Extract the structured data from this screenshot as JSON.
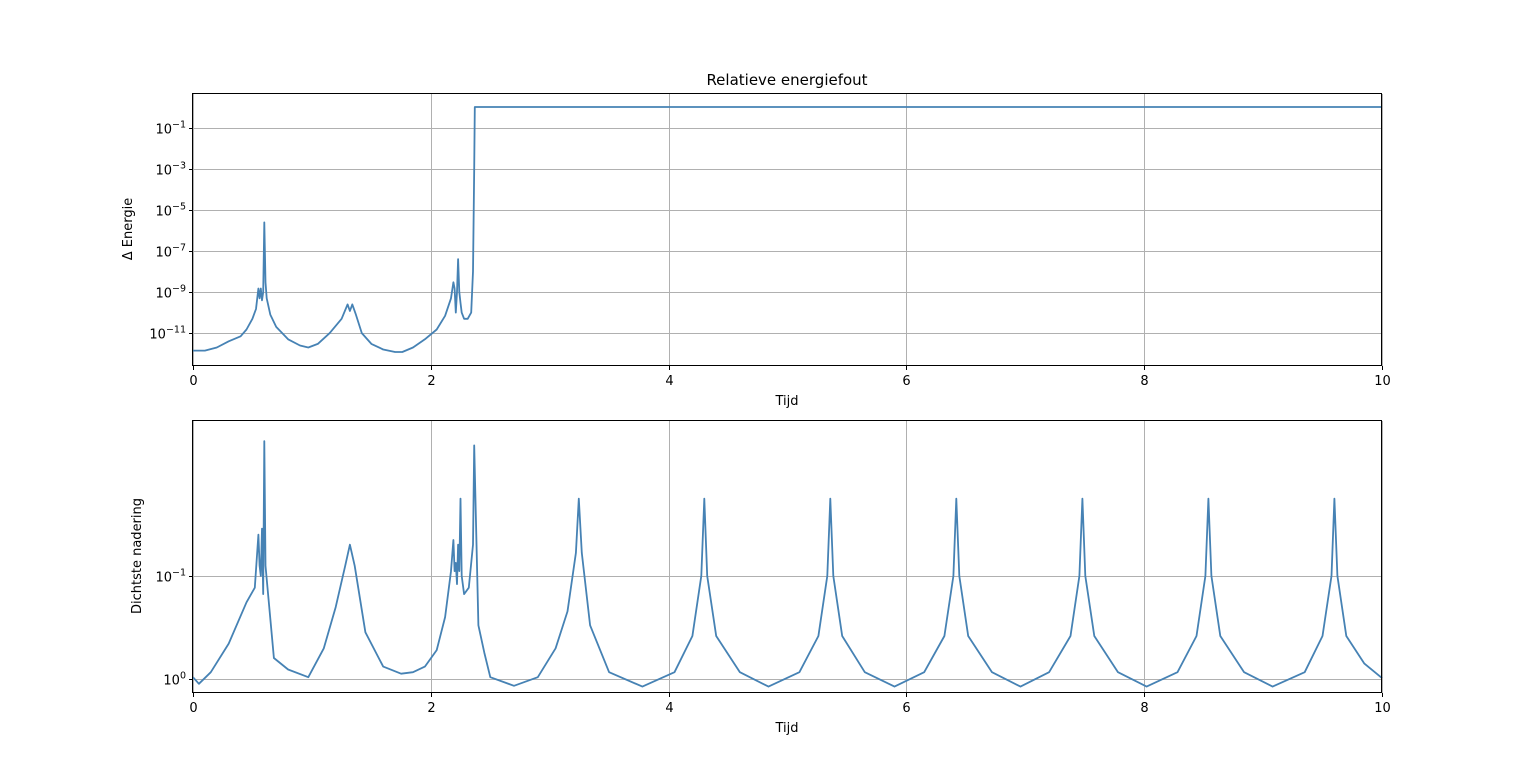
{
  "chart_data": [
    {
      "type": "line",
      "title": "Relatieve energiefout",
      "xlabel": "Tijd",
      "ylabel": "Δ Energie",
      "yscale": "log",
      "xlim": [
        0,
        10
      ],
      "ylim": [
        2.5e-13,
        4.5
      ],
      "grid": true,
      "color": "#4682b4",
      "xticks": [
        {
          "value": 0,
          "label": "0"
        },
        {
          "value": 2,
          "label": "2"
        },
        {
          "value": 4,
          "label": "4"
        },
        {
          "value": 6,
          "label": "6"
        },
        {
          "value": 8,
          "label": "8"
        },
        {
          "value": 10,
          "label": "10"
        }
      ],
      "yticks": [
        {
          "value": 1e-11,
          "base": "10",
          "exp": "−11"
        },
        {
          "value": 1e-09,
          "base": "10",
          "exp": "−9"
        },
        {
          "value": 1e-07,
          "base": "10",
          "exp": "−7"
        },
        {
          "value": 1e-05,
          "base": "10",
          "exp": "−5"
        },
        {
          "value": 0.001,
          "base": "10",
          "exp": "−3"
        },
        {
          "value": 0.1,
          "base": "10",
          "exp": "−1"
        }
      ],
      "series": [
        {
          "x": [
            0,
            0.1,
            0.2,
            0.3,
            0.4,
            0.45,
            0.5,
            0.53,
            0.55,
            0.56,
            0.57,
            0.58,
            0.59,
            0.6,
            0.61,
            0.62,
            0.65,
            0.7,
            0.8,
            0.9,
            0.97,
            1.05,
            1.15,
            1.25,
            1.3,
            1.32,
            1.34,
            1.37,
            1.42,
            1.5,
            1.6,
            1.7,
            1.76,
            1.85,
            1.95,
            2.05,
            2.12,
            2.17,
            2.19,
            2.2,
            2.21,
            2.22,
            2.23,
            2.24,
            2.25,
            2.26,
            2.28,
            2.31,
            2.34,
            2.355,
            2.365,
            2.37,
            4,
            6,
            8,
            10
          ],
          "y": [
            1.4e-12,
            1.4e-12,
            2e-12,
            4e-12,
            7e-12,
            1.5e-11,
            5e-11,
            1.5e-10,
            1.5e-09,
            5e-10,
            1.5e-09,
            4e-10,
            1e-09,
            2.5e-06,
            3e-09,
            5e-10,
            8e-11,
            2e-11,
            5e-12,
            2.5e-12,
            2e-12,
            3e-12,
            1e-11,
            5e-11,
            2.5e-10,
            1.2e-10,
            2.5e-10,
            8e-11,
            1e-11,
            3e-12,
            1.6e-12,
            1.2e-12,
            1.2e-12,
            2e-12,
            5e-12,
            1.5e-11,
            7e-11,
            5e-10,
            3e-09,
            1.5e-09,
            1e-10,
            1e-09,
            4e-08,
            1e-09,
            3e-10,
            1e-10,
            5e-11,
            5e-11,
            1e-10,
            1e-08,
            0.001,
            1.05,
            1.05,
            1.05,
            1.05,
            1.05
          ]
        }
      ]
    },
    {
      "type": "line",
      "title": "",
      "xlabel": "Tijd",
      "ylabel": "Dichtste nadering",
      "yscale": "log",
      "yinverted": true,
      "xlim": [
        0,
        10
      ],
      "ylim": [
        1.35,
        0.0032
      ],
      "grid": true,
      "color": "#4682b4",
      "xticks": [
        {
          "value": 0,
          "label": "0"
        },
        {
          "value": 2,
          "label": "2"
        },
        {
          "value": 4,
          "label": "4"
        },
        {
          "value": 6,
          "label": "6"
        },
        {
          "value": 8,
          "label": "8"
        },
        {
          "value": 10,
          "label": "10"
        }
      ],
      "yticks": [
        {
          "value": 1,
          "base": "10",
          "exp": "0"
        },
        {
          "value": 0.1,
          "base": "10",
          "exp": "−1"
        }
      ],
      "series": [
        {
          "x": [
            0,
            0.05,
            0.15,
            0.3,
            0.45,
            0.52,
            0.55,
            0.56,
            0.57,
            0.58,
            0.59,
            0.6,
            0.61,
            0.68,
            0.8,
            0.97,
            1.1,
            1.2,
            1.28,
            1.32,
            1.36,
            1.45,
            1.6,
            1.75,
            1.85,
            1.95,
            2.05,
            2.12,
            2.17,
            2.19,
            2.2,
            2.21,
            2.22,
            2.23,
            2.24,
            2.25,
            2.26,
            2.28,
            2.32,
            2.355,
            2.365,
            2.4,
            2.45,
            2.5,
            2.7,
            2.9,
            3.05,
            3.15,
            3.22,
            3.245,
            3.27,
            3.34,
            3.5,
            3.78,
            4.05,
            4.2,
            4.275,
            4.3,
            4.325,
            4.4,
            4.6,
            4.84,
            5.1,
            5.26,
            5.335,
            5.36,
            5.385,
            5.46,
            5.65,
            5.9,
            6.15,
            6.32,
            6.395,
            6.42,
            6.445,
            6.52,
            6.72,
            6.96,
            7.2,
            7.38,
            7.455,
            7.48,
            7.505,
            7.58,
            7.78,
            8.02,
            8.28,
            8.44,
            8.515,
            8.54,
            8.565,
            8.64,
            8.84,
            9.08,
            9.35,
            9.5,
            9.575,
            9.6,
            9.625,
            9.7,
            9.85,
            10
          ],
          "y": [
            0.95,
            1.1,
            0.85,
            0.45,
            0.18,
            0.13,
            0.04,
            0.08,
            0.1,
            0.035,
            0.15,
            0.005,
            0.08,
            0.62,
            0.8,
            0.95,
            0.5,
            0.2,
            0.08,
            0.05,
            0.08,
            0.35,
            0.75,
            0.88,
            0.85,
            0.75,
            0.52,
            0.25,
            0.09,
            0.045,
            0.09,
            0.075,
            0.12,
            0.05,
            0.09,
            0.018,
            0.1,
            0.15,
            0.13,
            0.05,
            0.0055,
            0.3,
            0.55,
            0.95,
            1.15,
            0.95,
            0.5,
            0.22,
            0.06,
            0.018,
            0.06,
            0.3,
            0.85,
            1.17,
            0.85,
            0.38,
            0.1,
            0.018,
            0.1,
            0.38,
            0.85,
            1.17,
            0.85,
            0.38,
            0.1,
            0.018,
            0.1,
            0.38,
            0.85,
            1.17,
            0.85,
            0.38,
            0.1,
            0.018,
            0.1,
            0.38,
            0.85,
            1.17,
            0.85,
            0.38,
            0.1,
            0.018,
            0.1,
            0.38,
            0.85,
            1.17,
            0.85,
            0.38,
            0.1,
            0.018,
            0.1,
            0.38,
            0.85,
            1.17,
            0.85,
            0.38,
            0.1,
            0.018,
            0.1,
            0.38,
            0.7,
            0.97
          ]
        }
      ]
    }
  ]
}
